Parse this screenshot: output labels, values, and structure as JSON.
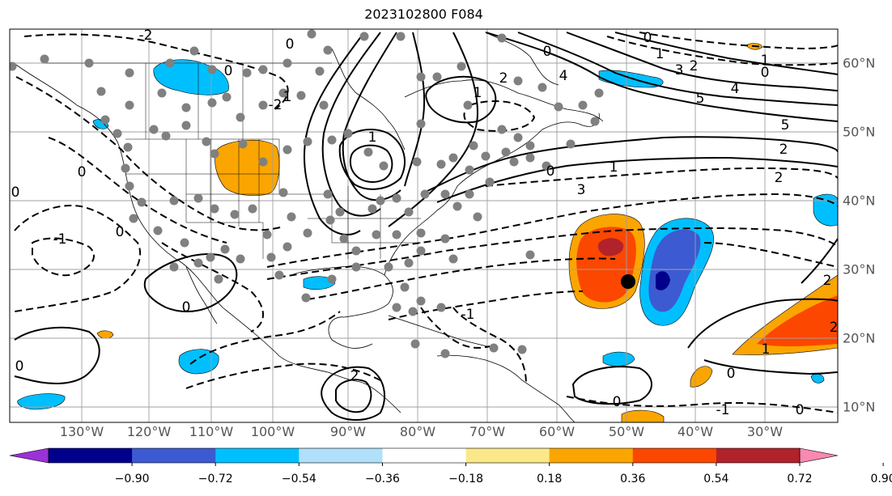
{
  "title": "2023102800 F084",
  "lon_labels": [
    "130°W",
    "120°W",
    "110°W",
    "100°W",
    "90°W",
    "80°W",
    "70°W",
    "60°W",
    "50°W",
    "40°W",
    "30°W"
  ],
  "lat_labels": [
    "60°N",
    "50°N",
    "40°N",
    "30°N",
    "20°N",
    "10°N"
  ],
  "colorbar": {
    "ticks": [
      "−0.90",
      "−0.72",
      "−0.54",
      "−0.36",
      "−0.18",
      "0.18",
      "0.36",
      "0.54",
      "0.72",
      "0.90"
    ],
    "colors": [
      "#9b32d7",
      "#00008c",
      "#3c5ad2",
      "#00bfff",
      "#b0e0fa",
      "#ffffff",
      "#fbe88a",
      "#fba500",
      "#fb4700",
      "#b2222a",
      "#fa88b0"
    ]
  },
  "contour_labels": {
    "neg2_nw": "-2",
    "zero_nw": "0",
    "neg1_w": "-1",
    "neg1_sw": "-1",
    "zero_sw": "0",
    "zero_pac": "0",
    "zero_mex": "0",
    "two_sw": "2",
    "two_car": "2",
    "neg1_car": "-1",
    "neg1_car2": "-1",
    "one_ne": "1",
    "two_ne": "2",
    "zero_nea": "0",
    "four_a": "4",
    "one_atl": "1",
    "two_atl": "2",
    "three_atl": "3",
    "zero_n": "0",
    "one_n": "1",
    "two_n": "2",
    "three_n": "3",
    "four_n": "4",
    "five_n": "5",
    "zero_ne2": "0",
    "one_ne2": "1",
    "two_e": "2",
    "five_e": "5",
    "zero_s": "0",
    "zero_s2": "0",
    "one_e": "1",
    "two_e2": "2",
    "neg1_se": "-1",
    "zero_se": "0",
    "one_gl": "1",
    "two_gl": "2",
    "neg2_gl": "-2"
  }
}
